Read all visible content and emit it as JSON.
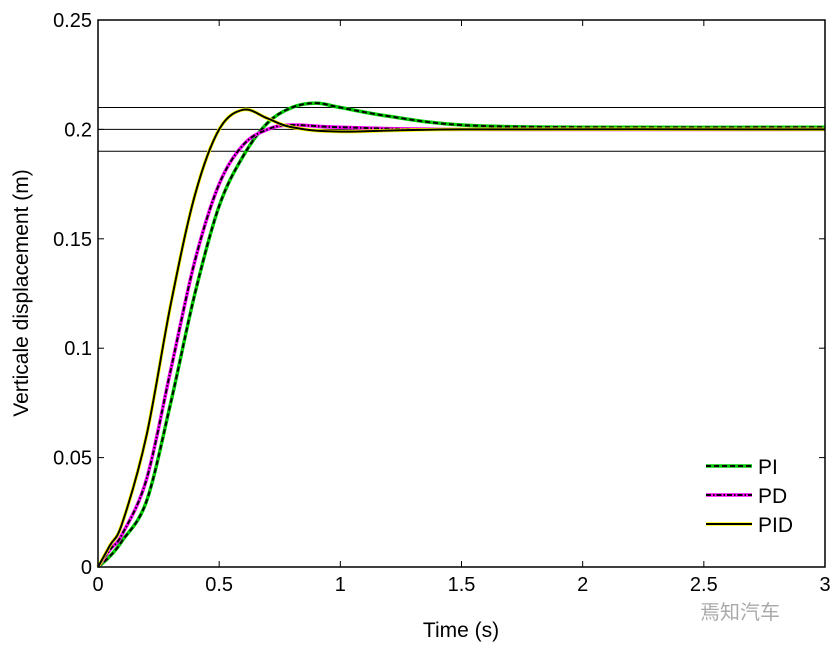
{
  "chart_data": {
    "type": "line",
    "xlabel": "Time (s)",
    "ylabel": "Verticale displacement (m)",
    "xlim": [
      0,
      3
    ],
    "ylim": [
      0,
      0.25
    ],
    "xticks": [
      "0",
      "0.5",
      "1",
      "1.5",
      "2",
      "2.5",
      "3"
    ],
    "yticks": [
      "0",
      "0.05",
      "0.1",
      "0.15",
      "0.2",
      "0.25"
    ],
    "grid": false,
    "legend_position": "bottom-right",
    "reference_lines": [
      0.21,
      0.2,
      0.19
    ],
    "series": [
      {
        "name": "PI",
        "style": "dashed",
        "color": "#00cc00",
        "x": [
          0,
          0.05,
          0.1,
          0.2,
          0.3,
          0.4,
          0.5,
          0.6,
          0.7,
          0.8,
          0.9,
          1.0,
          1.2,
          1.5,
          2,
          3
        ],
        "y": [
          0,
          0.005,
          0.012,
          0.03,
          0.075,
          0.125,
          0.165,
          0.188,
          0.203,
          0.21,
          0.212,
          0.21,
          0.206,
          0.202,
          0.201,
          0.201
        ]
      },
      {
        "name": "PD",
        "style": "dash-dot",
        "color": "#ff00ff",
        "x": [
          0,
          0.05,
          0.1,
          0.2,
          0.3,
          0.4,
          0.5,
          0.6,
          0.7,
          0.8,
          1.0,
          1.5,
          3
        ],
        "y": [
          0,
          0.008,
          0.015,
          0.04,
          0.09,
          0.14,
          0.175,
          0.193,
          0.2,
          0.202,
          0.201,
          0.2,
          0.2
        ]
      },
      {
        "name": "PID",
        "style": "solid",
        "color": "#ffff00",
        "x": [
          0,
          0.05,
          0.1,
          0.2,
          0.3,
          0.4,
          0.5,
          0.6,
          0.7,
          0.8,
          1.0,
          1.5,
          3
        ],
        "y": [
          0,
          0.01,
          0.02,
          0.06,
          0.12,
          0.17,
          0.2,
          0.209,
          0.205,
          0.201,
          0.199,
          0.2,
          0.2
        ]
      }
    ]
  },
  "watermark": "焉知汽车"
}
